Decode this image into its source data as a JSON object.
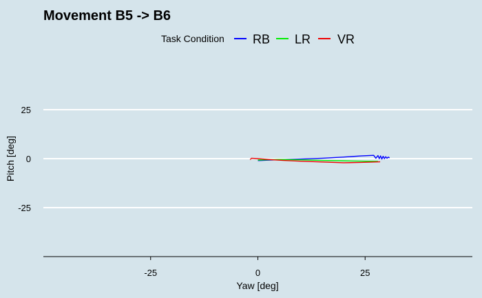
{
  "chart_data": {
    "type": "line",
    "title": "Movement B5 -> B6",
    "xlabel": "Yaw [deg]",
    "ylabel": "Pitch [deg]",
    "xlim": [
      -50,
      50
    ],
    "ylim": [
      -50,
      50
    ],
    "xticks": [
      -25,
      0,
      25
    ],
    "yticks": [
      -25,
      0,
      25
    ],
    "grid": "horizontal major",
    "legend": {
      "title": "Task Condition",
      "placement": "top",
      "entries": [
        "RB",
        "LR",
        "VR"
      ]
    },
    "series": [
      {
        "name": "RB",
        "color": "#0000ff",
        "x": [
          0,
          5,
          10,
          15,
          20,
          24,
          27,
          27.5,
          28,
          28.3,
          28.6,
          28.9,
          29.2,
          29.5,
          29.8,
          30.1,
          30.4,
          30.7
        ],
        "y": [
          -1,
          -0.5,
          -0.2,
          0.2,
          0.8,
          1.4,
          1.7,
          0.2,
          1.6,
          0.0,
          1.4,
          -0.2,
          1.2,
          0.0,
          1.0,
          0.2,
          0.8,
          0.4
        ]
      },
      {
        "name": "LR",
        "color": "#00ee00",
        "x": [
          0,
          5,
          10,
          15,
          20,
          25,
          28
        ],
        "y": [
          -0.7,
          -0.4,
          -0.6,
          -0.9,
          -1.1,
          -1.3,
          -1.4
        ]
      },
      {
        "name": "VR",
        "color": "#ee0000",
        "x": [
          -1.8,
          -1.5,
          0,
          3,
          6,
          10,
          15,
          20,
          24,
          28.5
        ],
        "y": [
          -0.5,
          0.2,
          0.0,
          -0.5,
          -0.9,
          -1.3,
          -1.7,
          -2.1,
          -1.9,
          -1.6
        ]
      }
    ]
  }
}
